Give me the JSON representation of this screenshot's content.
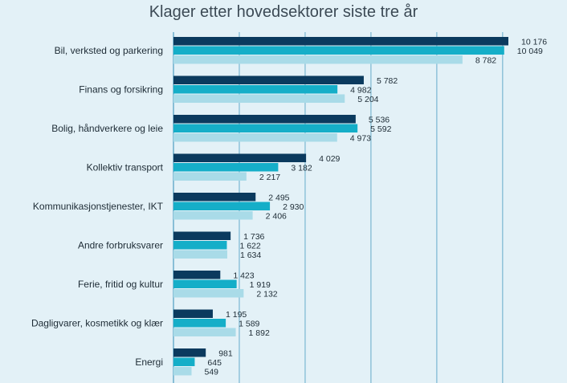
{
  "chart_data": {
    "type": "bar",
    "orientation": "horizontal",
    "title": "Klager etter hovedsektorer siste tre år",
    "categories": [
      "Bil, verksted og parkering",
      "Finans og forsikring",
      "Bolig, håndverkere og leie",
      "Kollektiv transport",
      "Kommunikasjonstjenester, IKT",
      "Andre forbruksvarer",
      "Ferie, fritid og kultur",
      "Dagligvarer, kosmetikk og klær",
      "Energi"
    ],
    "series": [
      {
        "values": [
          10176,
          5782,
          5536,
          4029,
          2495,
          1736,
          1423,
          1195,
          981
        ],
        "labels": [
          "10 176",
          "5 782",
          "5 536",
          "4 029",
          "2 495",
          "1 736",
          "1 423",
          "1 195",
          "981"
        ],
        "color": "#0b3a5e"
      },
      {
        "values": [
          10049,
          4982,
          5592,
          3182,
          2930,
          1622,
          1919,
          1589,
          645
        ],
        "labels": [
          "10 049",
          "4 982",
          "5 592",
          "3 182",
          "2 930",
          "1 622",
          "1 919",
          "1 589",
          "645"
        ],
        "color": "#15aec8"
      },
      {
        "values": [
          8782,
          5204,
          4973,
          2217,
          2406,
          1634,
          2132,
          1892,
          549
        ],
        "labels": [
          "8 782",
          "5 204",
          "4 973",
          "2 217",
          "2 406",
          "1 634",
          "2 132",
          "1 892",
          "549"
        ],
        "color": "#a9dbe8"
      }
    ],
    "xlim": [
      0,
      10500
    ],
    "gridlines": [
      2000,
      4000,
      6000,
      8000,
      10000
    ],
    "grid": true,
    "legend": "none",
    "grid_color": "#8fc3d9",
    "background": "#e3f1f7"
  }
}
